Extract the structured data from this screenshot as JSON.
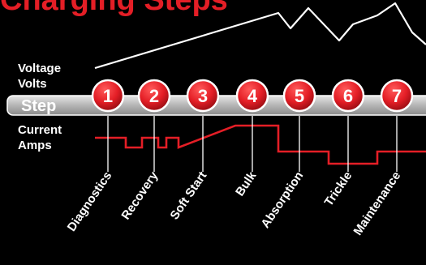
{
  "title": "Charging Steps",
  "labels": {
    "voltage": "Voltage",
    "volts": "Volts",
    "step": "Step",
    "current": "Current",
    "amps": "Amps"
  },
  "steps": [
    {
      "number": "1",
      "name": "Diagnostics"
    },
    {
      "number": "2",
      "name": "Recovery"
    },
    {
      "number": "3",
      "name": "Soft Start"
    },
    {
      "number": "4",
      "name": "Bulk"
    },
    {
      "number": "5",
      "name": "Absorption"
    },
    {
      "number": "6",
      "name": "Trickle"
    },
    {
      "number": "7",
      "name": "Maintenance"
    }
  ],
  "colors": {
    "background": "#000000",
    "accent": "#e41e26",
    "voltage_line": "#ffffff",
    "current_line": "#e41e26",
    "step_bar": "#b9b9b9",
    "text": "#ffffff"
  }
}
